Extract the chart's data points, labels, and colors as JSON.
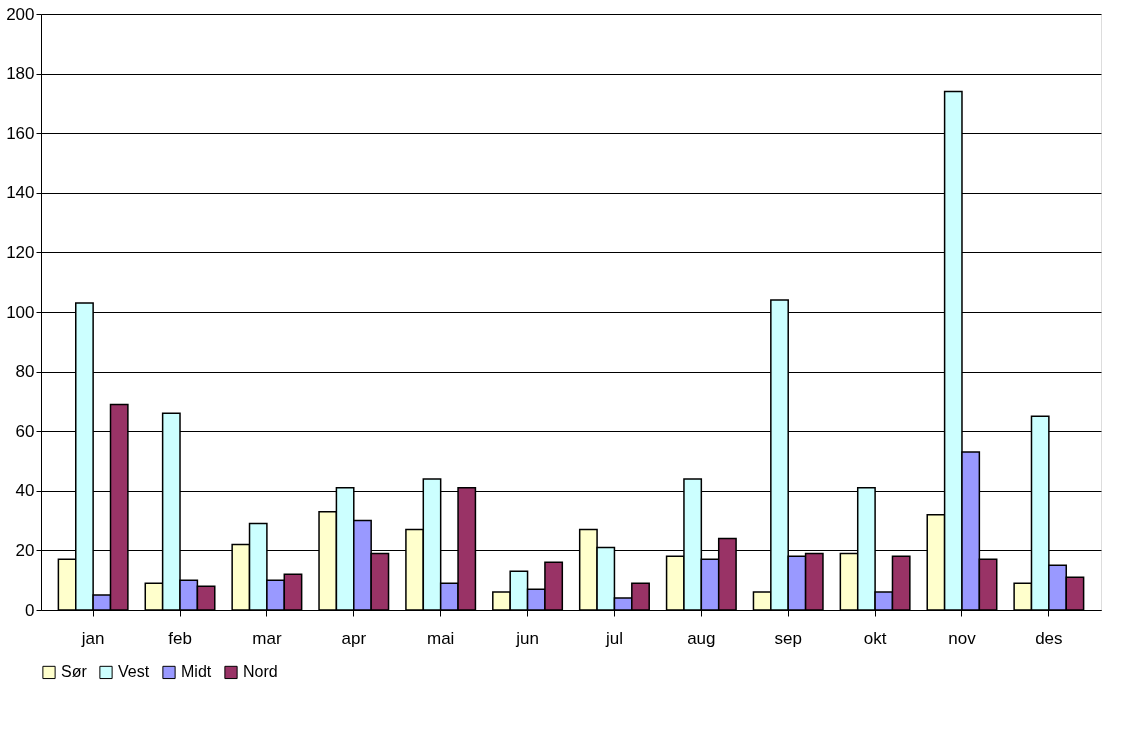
{
  "chart_data": {
    "type": "bar",
    "categories": [
      "jan",
      "feb",
      "mar",
      "apr",
      "mai",
      "jun",
      "jul",
      "aug",
      "sep",
      "okt",
      "nov",
      "des"
    ],
    "series": [
      {
        "name": "Sør",
        "color": "#ffffcc",
        "values": [
          17,
          9,
          22,
          33,
          27,
          6,
          27,
          18,
          6,
          19,
          32,
          9
        ]
      },
      {
        "name": "Vest",
        "color": "#ccffff",
        "values": [
          103,
          66,
          29,
          41,
          44,
          13,
          21,
          44,
          104,
          41,
          174,
          65
        ]
      },
      {
        "name": "Midt",
        "color": "#9999ff",
        "values": [
          5,
          10,
          10,
          30,
          9,
          7,
          4,
          17,
          18,
          6,
          53,
          15
        ]
      },
      {
        "name": "Nord",
        "color": "#993366",
        "values": [
          69,
          8,
          12,
          19,
          41,
          16,
          9,
          24,
          19,
          18,
          17,
          11
        ]
      }
    ],
    "ylim": [
      0,
      200
    ],
    "yticks": [
      0,
      20,
      40,
      60,
      80,
      100,
      120,
      140,
      160,
      180,
      200
    ],
    "grid": "y",
    "legend": "bottom"
  }
}
